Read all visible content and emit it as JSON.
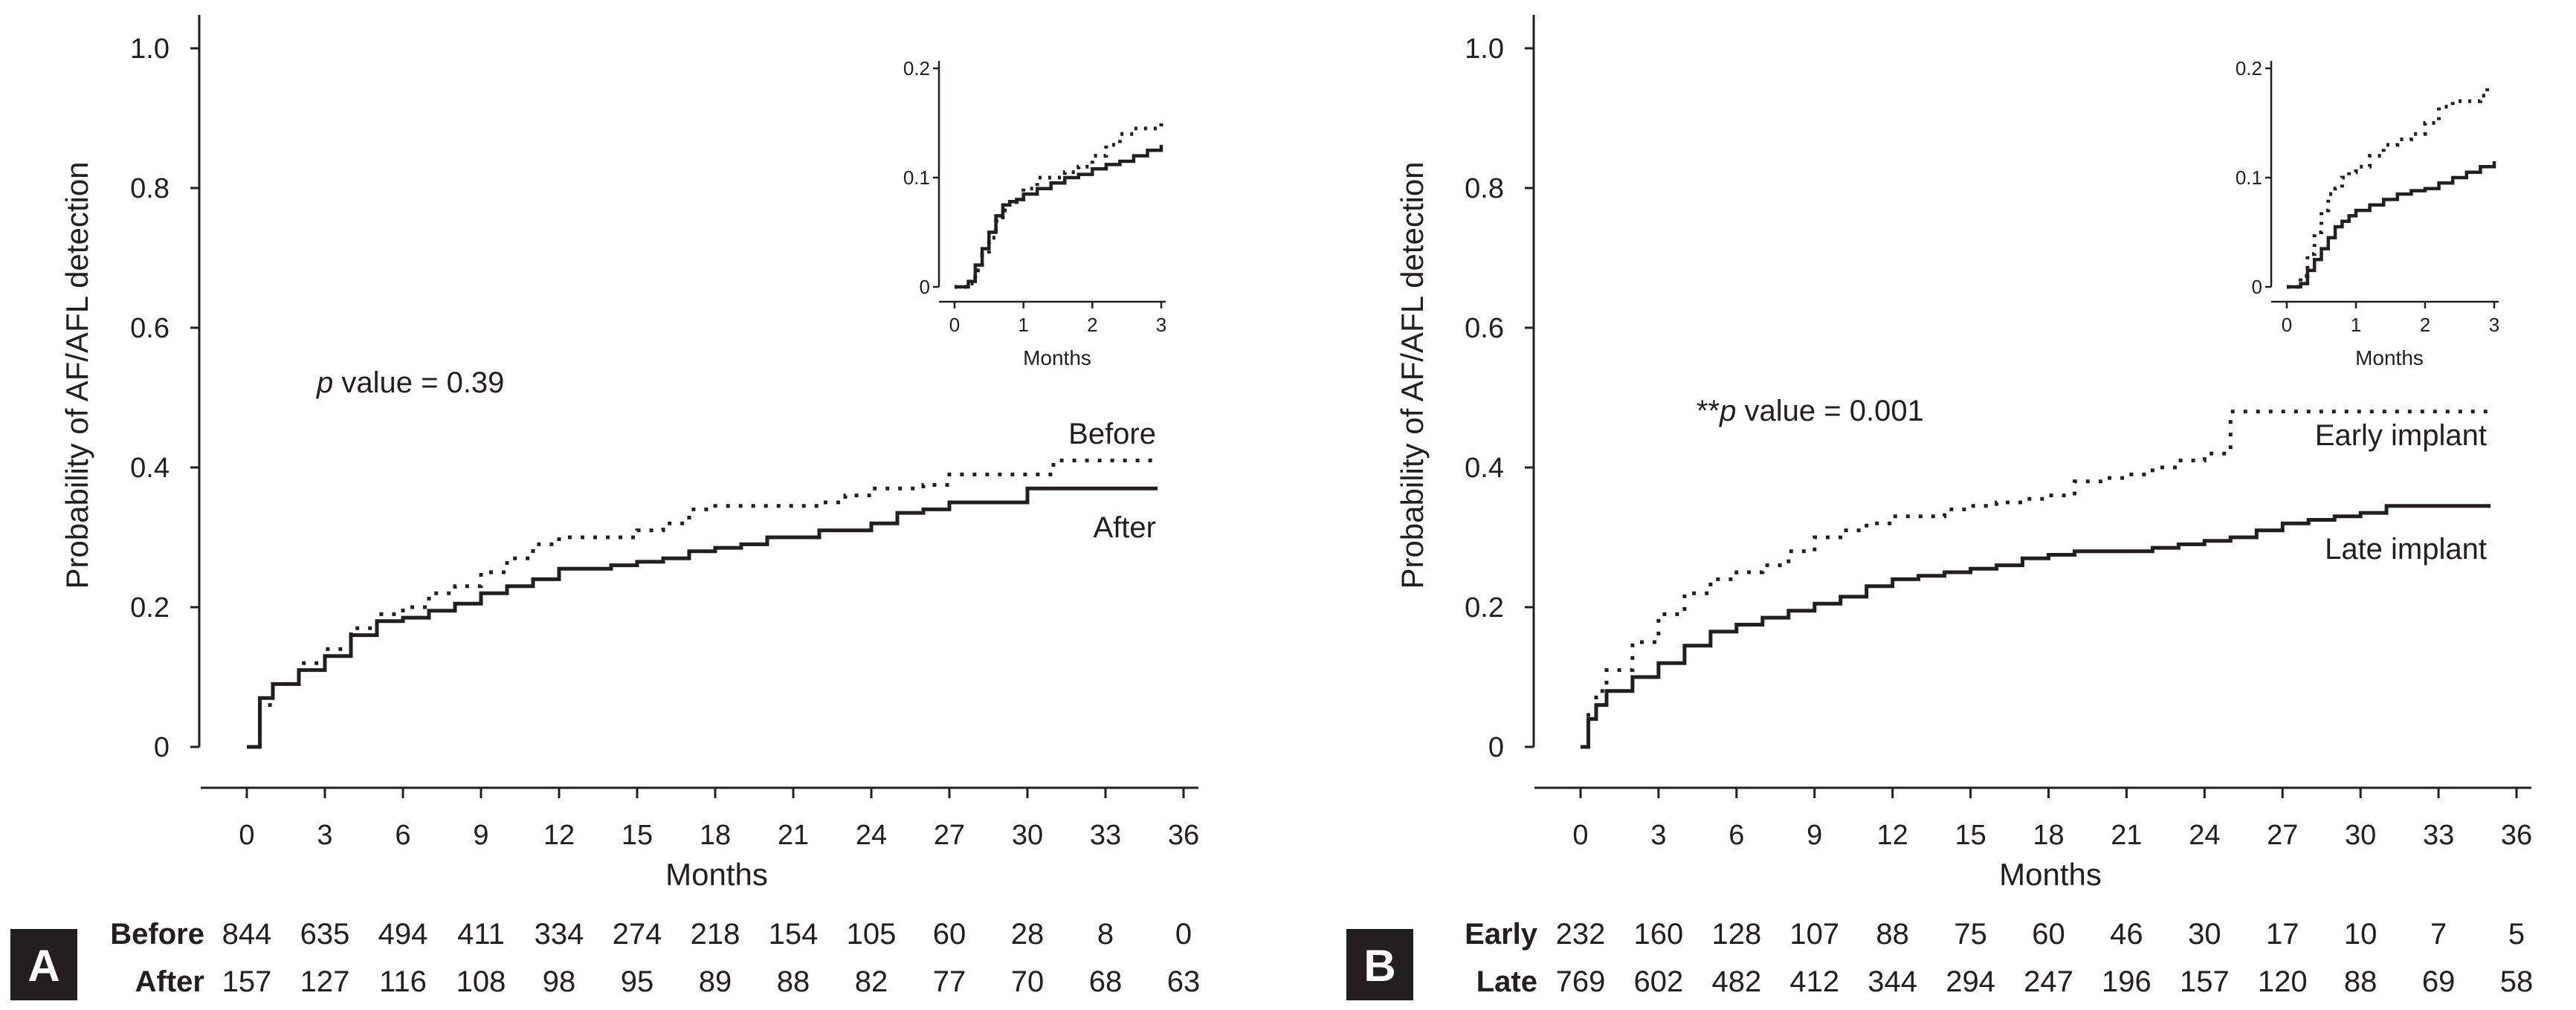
{
  "chart_data": [
    {
      "type": "line",
      "panel": "A",
      "xlabel": "Months",
      "ylabel": "Probability of AF/AFL detection",
      "xlim": [
        0,
        36
      ],
      "ylim": [
        0,
        1.0
      ],
      "xticks": [
        0,
        3,
        6,
        9,
        12,
        15,
        18,
        21,
        24,
        27,
        30,
        33,
        36
      ],
      "yticks": [
        0,
        0.2,
        0.4,
        0.6,
        0.8,
        1.0
      ],
      "ytick_labels": [
        "0",
        "0.2",
        "0.4",
        "0.6",
        "0.8",
        "1.0"
      ],
      "annotation": {
        "italic": "p",
        "text": " value = 0.39"
      },
      "series": [
        {
          "name": "Before",
          "style": "dotted",
          "x": [
            0,
            0.5,
            1,
            2,
            3,
            4,
            5,
            6,
            7,
            8,
            9,
            10,
            11,
            12,
            13,
            14,
            15,
            16,
            17,
            18,
            19,
            20,
            21,
            22,
            23,
            24,
            25,
            26,
            27,
            28,
            29,
            30,
            31,
            32,
            33,
            34,
            35
          ],
          "y": [
            0,
            0.06,
            0.09,
            0.12,
            0.14,
            0.17,
            0.19,
            0.2,
            0.22,
            0.23,
            0.25,
            0.27,
            0.29,
            0.3,
            0.3,
            0.3,
            0.31,
            0.32,
            0.34,
            0.345,
            0.345,
            0.345,
            0.345,
            0.35,
            0.36,
            0.37,
            0.37,
            0.375,
            0.39,
            0.39,
            0.39,
            0.39,
            0.41,
            0.41,
            0.41,
            0.41,
            0.41
          ]
        },
        {
          "name": "After",
          "style": "solid",
          "x": [
            0,
            0.5,
            1,
            2,
            3,
            4,
            5,
            6,
            7,
            8,
            9,
            10,
            11,
            12,
            13,
            14,
            15,
            16,
            17,
            18,
            19,
            20,
            21,
            22,
            23,
            24,
            25,
            26,
            27,
            28,
            29,
            30,
            31,
            32,
            33,
            34,
            35
          ],
          "y": [
            0,
            0.07,
            0.09,
            0.11,
            0.13,
            0.16,
            0.18,
            0.185,
            0.195,
            0.205,
            0.22,
            0.23,
            0.24,
            0.255,
            0.255,
            0.26,
            0.265,
            0.27,
            0.28,
            0.285,
            0.29,
            0.3,
            0.3,
            0.31,
            0.31,
            0.32,
            0.335,
            0.34,
            0.35,
            0.35,
            0.35,
            0.37,
            0.37,
            0.37,
            0.37,
            0.37,
            0.37
          ]
        }
      ],
      "labels": {
        "before": "Before",
        "after": "After"
      },
      "inset": {
        "xlabel": "Months",
        "xlim": [
          0,
          3
        ],
        "ylim": [
          0,
          0.2
        ],
        "xticks": [
          0,
          1,
          2,
          3
        ],
        "yticks": [
          0,
          0.1,
          0.2
        ],
        "ytick_labels": [
          "0",
          "0.1",
          "0.2"
        ],
        "series": [
          {
            "name": "Before",
            "style": "dotted",
            "x": [
              0,
              0.2,
              0.3,
              0.4,
              0.5,
              0.6,
              0.7,
              0.8,
              0.9,
              1.0,
              1.2,
              1.4,
              1.6,
              1.8,
              2.0,
              2.2,
              2.4,
              2.6,
              2.8,
              3.0
            ],
            "y": [
              0,
              0.003,
              0.015,
              0.03,
              0.045,
              0.06,
              0.07,
              0.075,
              0.08,
              0.09,
              0.1,
              0.1,
              0.105,
              0.11,
              0.12,
              0.13,
              0.14,
              0.145,
              0.145,
              0.15
            ]
          },
          {
            "name": "After",
            "style": "solid",
            "x": [
              0,
              0.2,
              0.3,
              0.4,
              0.5,
              0.6,
              0.7,
              0.8,
              0.9,
              1.0,
              1.2,
              1.4,
              1.6,
              1.8,
              2.0,
              2.2,
              2.4,
              2.6,
              2.8,
              3.0
            ],
            "y": [
              0,
              0.005,
              0.02,
              0.035,
              0.05,
              0.065,
              0.075,
              0.078,
              0.08,
              0.085,
              0.09,
              0.095,
              0.1,
              0.103,
              0.108,
              0.112,
              0.115,
              0.12,
              0.125,
              0.13
            ]
          }
        ]
      },
      "risk_table": {
        "rows": [
          {
            "name": "Before",
            "values": [
              "844",
              "635",
              "494",
              "411",
              "334",
              "274",
              "218",
              "154",
              "105",
              "60",
              "28",
              "8",
              "0"
            ]
          },
          {
            "name": "After",
            "values": [
              "157",
              "127",
              "116",
              "108",
              "98",
              "95",
              "89",
              "88",
              "82",
              "77",
              "70",
              "68",
              "63"
            ]
          }
        ]
      }
    },
    {
      "type": "line",
      "panel": "B",
      "xlabel": "Months",
      "ylabel": "Probability of AF/AFL detection",
      "xlim": [
        0,
        36
      ],
      "ylim": [
        0,
        1.0
      ],
      "xticks": [
        0,
        3,
        6,
        9,
        12,
        15,
        18,
        21,
        24,
        27,
        30,
        33,
        36
      ],
      "yticks": [
        0,
        0.2,
        0.4,
        0.6,
        0.8,
        1.0
      ],
      "ytick_labels": [
        "0",
        "0.2",
        "0.4",
        "0.6",
        "0.8",
        "1.0"
      ],
      "annotation": {
        "prefix": "**",
        "italic": "p",
        "text": " value = 0.001"
      },
      "series": [
        {
          "name": "Early implant",
          "style": "dotted",
          "x": [
            0,
            0.3,
            0.6,
            1,
            2,
            3,
            4,
            5,
            6,
            7,
            8,
            9,
            10,
            11,
            12,
            13,
            14,
            15,
            16,
            17,
            18,
            19,
            20,
            21,
            22,
            23,
            24,
            25,
            26,
            27,
            28,
            29,
            30,
            31,
            32,
            33,
            34,
            35
          ],
          "y": [
            0,
            0.05,
            0.08,
            0.11,
            0.15,
            0.19,
            0.22,
            0.24,
            0.25,
            0.26,
            0.28,
            0.3,
            0.31,
            0.32,
            0.33,
            0.33,
            0.34,
            0.345,
            0.35,
            0.355,
            0.36,
            0.38,
            0.385,
            0.39,
            0.4,
            0.41,
            0.42,
            0.48,
            0.48,
            0.48,
            0.48,
            0.48,
            0.48,
            0.48,
            0.48,
            0.48,
            0.48,
            0.48
          ]
        },
        {
          "name": "Late implant",
          "style": "solid",
          "x": [
            0,
            0.3,
            0.6,
            1,
            2,
            3,
            4,
            5,
            6,
            7,
            8,
            9,
            10,
            11,
            12,
            13,
            14,
            15,
            16,
            17,
            18,
            19,
            20,
            21,
            22,
            23,
            24,
            25,
            26,
            27,
            28,
            29,
            30,
            31,
            32,
            33,
            34,
            35
          ],
          "y": [
            0,
            0.04,
            0.06,
            0.08,
            0.1,
            0.12,
            0.145,
            0.165,
            0.175,
            0.185,
            0.195,
            0.205,
            0.215,
            0.23,
            0.24,
            0.245,
            0.25,
            0.255,
            0.26,
            0.27,
            0.275,
            0.28,
            0.28,
            0.28,
            0.285,
            0.29,
            0.295,
            0.3,
            0.31,
            0.32,
            0.325,
            0.33,
            0.335,
            0.345,
            0.345,
            0.345,
            0.345,
            0.345
          ]
        }
      ],
      "labels": {
        "early": "Early implant",
        "late": "Late implant"
      },
      "inset": {
        "xlabel": "Months",
        "xlim": [
          0,
          3
        ],
        "ylim": [
          0,
          0.2
        ],
        "xticks": [
          0,
          1,
          2,
          3
        ],
        "yticks": [
          0,
          0.1,
          0.2
        ],
        "ytick_labels": [
          "0",
          "0.1",
          "0.2"
        ],
        "series": [
          {
            "name": "Early implant",
            "style": "dotted",
            "x": [
              0,
              0.2,
              0.3,
              0.4,
              0.5,
              0.6,
              0.7,
              0.8,
              0.9,
              1.0,
              1.2,
              1.4,
              1.6,
              1.8,
              2.0,
              2.2,
              2.4,
              2.6,
              2.8,
              2.9
            ],
            "y": [
              0,
              0.01,
              0.03,
              0.05,
              0.07,
              0.085,
              0.09,
              0.1,
              0.105,
              0.11,
              0.12,
              0.13,
              0.135,
              0.14,
              0.15,
              0.165,
              0.17,
              0.17,
              0.175,
              0.185
            ]
          },
          {
            "name": "Late implant",
            "style": "solid",
            "x": [
              0,
              0.2,
              0.3,
              0.4,
              0.5,
              0.6,
              0.7,
              0.8,
              0.9,
              1.0,
              1.2,
              1.4,
              1.6,
              1.8,
              2.0,
              2.2,
              2.4,
              2.6,
              2.8,
              3.0
            ],
            "y": [
              0,
              0.003,
              0.015,
              0.025,
              0.035,
              0.045,
              0.055,
              0.06,
              0.065,
              0.07,
              0.075,
              0.08,
              0.085,
              0.088,
              0.09,
              0.095,
              0.1,
              0.105,
              0.11,
              0.115
            ]
          }
        ]
      },
      "risk_table": {
        "rows": [
          {
            "name": "Early",
            "values": [
              "232",
              "160",
              "128",
              "107",
              "88",
              "75",
              "60",
              "46",
              "30",
              "17",
              "10",
              "7",
              "5"
            ]
          },
          {
            "name": "Late",
            "values": [
              "769",
              "602",
              "482",
              "412",
              "344",
              "294",
              "247",
              "196",
              "157",
              "120",
              "88",
              "69",
              "58"
            ]
          }
        ]
      }
    }
  ]
}
